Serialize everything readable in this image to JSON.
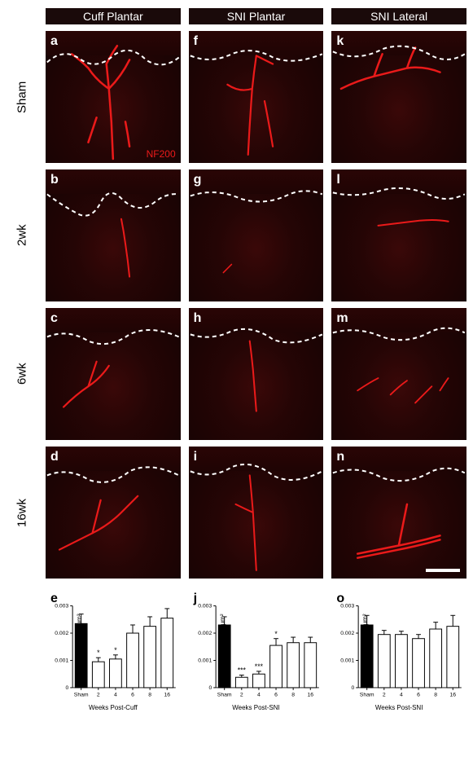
{
  "figure": {
    "columns": [
      {
        "key": "cuff_plantar",
        "header": "Cuff Plantar"
      },
      {
        "key": "sni_plantar",
        "header": "SNI Plantar"
      },
      {
        "key": "sni_lateral",
        "header": "SNI Lateral"
      }
    ],
    "rows": [
      {
        "key": "sham",
        "label": "Sham"
      },
      {
        "key": "2wk",
        "label": "2wk"
      },
      {
        "key": "6wk",
        "label": "6wk"
      },
      {
        "key": "16wk",
        "label": "16wk"
      }
    ],
    "panels": {
      "a": {
        "col": "cuff_plantar",
        "row": "sham",
        "nf200_label": true
      },
      "b": {
        "col": "cuff_plantar",
        "row": "2wk"
      },
      "c": {
        "col": "cuff_plantar",
        "row": "6wk"
      },
      "d": {
        "col": "cuff_plantar",
        "row": "16wk"
      },
      "f": {
        "col": "sni_plantar",
        "row": "sham"
      },
      "g": {
        "col": "sni_plantar",
        "row": "2wk"
      },
      "h": {
        "col": "sni_plantar",
        "row": "6wk"
      },
      "i": {
        "col": "sni_plantar",
        "row": "16wk"
      },
      "k": {
        "col": "sni_lateral",
        "row": "sham"
      },
      "l": {
        "col": "sni_lateral",
        "row": "2wk"
      },
      "m": {
        "col": "sni_lateral",
        "row": "6wk"
      },
      "n": {
        "col": "sni_lateral",
        "row": "16wk",
        "scalebar": true
      }
    },
    "nf200_label_text": "NF200",
    "fiber_color": "#ea1a1a",
    "dash_color": "#ffffff",
    "micrograph_bg_colors": [
      "#3a0808",
      "#250505",
      "#150303"
    ]
  },
  "charts": {
    "ylabel": "Fiber length (μm) per μm²",
    "yticks": [
      0,
      0.001,
      0.002,
      0.003
    ],
    "ylim": [
      0,
      0.003
    ],
    "xtick_labels": [
      "Sham",
      "2",
      "4",
      "6",
      "8",
      "16"
    ],
    "bar_fill_sham": "#000000",
    "bar_fill_other": "#ffffff",
    "bar_stroke": "#000000",
    "error_color": "#000000",
    "bar_width": 0.7,
    "label_fontsize": 8,
    "tick_fontsize": 7,
    "panels": {
      "e": {
        "xlabel": "Weeks Post-Cuff",
        "values": [
          0.00235,
          0.00095,
          0.00105,
          0.002,
          0.00225,
          0.00255
        ],
        "errors": [
          0.00035,
          0.00015,
          0.00015,
          0.0003,
          0.00035,
          0.00035
        ],
        "signif": [
          "",
          "*",
          "*",
          "",
          "",
          ""
        ]
      },
      "j": {
        "xlabel": "Weeks Post-SNI",
        "values": [
          0.0023,
          0.00038,
          0.0005,
          0.00155,
          0.00165,
          0.00165
        ],
        "errors": [
          0.0003,
          8e-05,
          0.0001,
          0.00025,
          0.0002,
          0.0002
        ],
        "signif": [
          "",
          "***",
          "***",
          "*",
          "",
          ""
        ]
      },
      "o": {
        "xlabel": "Weeks Post-SNI",
        "values": [
          0.0023,
          0.00195,
          0.00195,
          0.0018,
          0.00215,
          0.00225
        ],
        "errors": [
          0.00035,
          0.00015,
          0.00012,
          0.00015,
          0.00025,
          0.0004
        ],
        "signif": [
          "",
          "",
          "",
          "",
          "",
          ""
        ]
      }
    }
  }
}
